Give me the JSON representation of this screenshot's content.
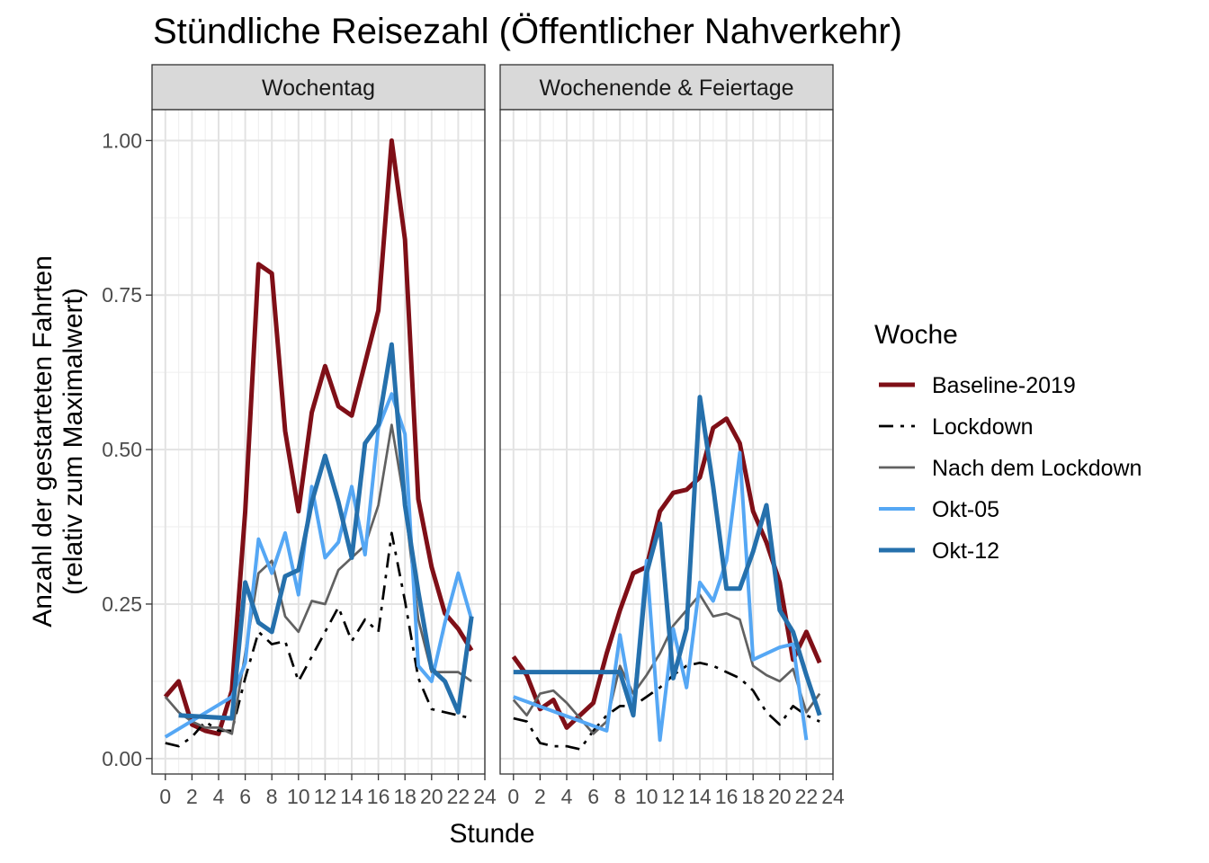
{
  "title": "Stündliche Reisezahl (Öffentlicher Nahverkehr)",
  "chart_data": {
    "type": "line",
    "title": "Stündliche Reisezahl (Öffentlicher Nahverkehr)",
    "xlabel": "Stunde",
    "ylabel_line1": "Anzahl der gestarteten Fahrten",
    "ylabel_line2": "(relativ zum Maximalwert)",
    "xlim": [
      -1,
      24
    ],
    "ylim": [
      -0.025,
      1.05
    ],
    "x_ticks": [
      0,
      2,
      4,
      6,
      8,
      10,
      12,
      14,
      16,
      18,
      20,
      22,
      24
    ],
    "x_tick_labels": [
      "0",
      "2",
      "4",
      "6",
      "8",
      "10",
      "12",
      "14",
      "16",
      "18",
      "20",
      "22",
      "24"
    ],
    "y_ticks": [
      0,
      0.25,
      0.5,
      0.75,
      1.0
    ],
    "y_tick_labels": [
      "0.00",
      "0.25",
      "0.50",
      "0.75",
      "1.00"
    ],
    "grid": true,
    "legend": {
      "title": "Woche",
      "position": "right",
      "entries": [
        "Baseline-2019",
        "Lockdown",
        "Nach dem Lockdown",
        "Okt-05",
        "Okt-12"
      ]
    },
    "style": {
      "Baseline-2019": {
        "color": "#7f0f17",
        "dash": "",
        "width": 5
      },
      "Lockdown": {
        "color": "#000000",
        "dash": "dash-dot",
        "width": 2.7
      },
      "Nach dem Lockdown": {
        "color": "#616161",
        "dash": "",
        "width": 2.7
      },
      "Okt-05": {
        "color": "#55a7f4",
        "dash": "",
        "width": 4
      },
      "Okt-12": {
        "color": "#2570ac",
        "dash": "",
        "width": 5
      }
    },
    "panels": [
      {
        "label": "Wochentag",
        "series": [
          {
            "name": "Baseline-2019",
            "x": [
              0,
              1,
              2,
              3,
              4,
              5,
              6,
              7,
              8,
              9,
              10,
              11,
              12,
              13,
              14,
              15,
              16,
              17,
              18,
              19,
              20,
              21,
              22,
              23
            ],
            "y": [
              0.1,
              0.125,
              0.055,
              0.045,
              0.04,
              0.11,
              0.4,
              0.8,
              0.785,
              0.53,
              0.4,
              0.56,
              0.635,
              0.57,
              0.555,
              0.64,
              0.725,
              1.0,
              0.84,
              0.42,
              0.31,
              0.235,
              0.21,
              0.175
            ]
          },
          {
            "name": "Lockdown",
            "x": [
              0,
              1,
              2,
              3,
              4,
              5,
              6,
              7,
              8,
              9,
              10,
              11,
              12,
              13,
              14,
              15,
              16,
              17,
              18,
              19,
              20,
              21,
              22,
              23
            ],
            "y": [
              0.025,
              0.02,
              0.035,
              0.06,
              0.045,
              0.045,
              0.13,
              0.205,
              0.185,
              0.19,
              0.125,
              0.165,
              0.205,
              0.245,
              0.19,
              0.225,
              0.205,
              0.365,
              0.255,
              0.13,
              0.08,
              0.075,
              0.07,
              0.065
            ]
          },
          {
            "name": "Nach dem Lockdown",
            "x": [
              0,
              1,
              2,
              3,
              4,
              5,
              6,
              7,
              8,
              9,
              10,
              11,
              12,
              13,
              14,
              15,
              16,
              17,
              18,
              19,
              20,
              21,
              22,
              23
            ],
            "y": [
              0.1,
              0.075,
              0.06,
              0.05,
              0.05,
              0.04,
              0.17,
              0.3,
              0.32,
              0.23,
              0.205,
              0.255,
              0.25,
              0.305,
              0.325,
              0.345,
              0.41,
              0.54,
              0.41,
              0.225,
              0.14,
              0.14,
              0.14,
              0.125
            ]
          },
          {
            "name": "Okt-05",
            "x": [
              0,
              5,
              6,
              7,
              8,
              9,
              10,
              11,
              12,
              13,
              14,
              15,
              16,
              17,
              18,
              19,
              20,
              21,
              22,
              23
            ],
            "y": [
              0.035,
              0.1,
              0.155,
              0.355,
              0.3,
              0.365,
              0.265,
              0.44,
              0.325,
              0.35,
              0.44,
              0.33,
              0.535,
              0.59,
              0.525,
              0.15,
              0.125,
              0.22,
              0.3,
              0.225
            ]
          },
          {
            "name": "Okt-12",
            "x": [
              1,
              5,
              6,
              7,
              8,
              9,
              10,
              11,
              12,
              13,
              14,
              15,
              16,
              17,
              18,
              19,
              20,
              21,
              22,
              23
            ],
            "y": [
              0.07,
              0.065,
              0.285,
              0.22,
              0.205,
              0.295,
              0.305,
              0.415,
              0.49,
              0.415,
              0.325,
              0.51,
              0.54,
              0.67,
              0.41,
              0.27,
              0.145,
              0.125,
              0.075,
              0.23
            ]
          }
        ]
      },
      {
        "label": "Wochenende & Feiertage",
        "series": [
          {
            "name": "Baseline-2019",
            "x": [
              0,
              1,
              2,
              3,
              4,
              5,
              6,
              7,
              8,
              9,
              10,
              11,
              12,
              13,
              14,
              15,
              16,
              17,
              18,
              19,
              20,
              21,
              22,
              23
            ],
            "y": [
              0.165,
              0.135,
              0.08,
              0.095,
              0.05,
              0.07,
              0.09,
              0.17,
              0.24,
              0.3,
              0.31,
              0.4,
              0.43,
              0.435,
              0.455,
              0.535,
              0.55,
              0.51,
              0.4,
              0.35,
              0.285,
              0.16,
              0.205,
              0.155
            ]
          },
          {
            "name": "Lockdown",
            "x": [
              0,
              1,
              2,
              3,
              4,
              5,
              6,
              7,
              8,
              9,
              10,
              11,
              12,
              13,
              14,
              15,
              16,
              17,
              18,
              19,
              20,
              21,
              22,
              23
            ],
            "y": [
              0.065,
              0.06,
              0.025,
              0.02,
              0.02,
              0.015,
              0.045,
              0.07,
              0.085,
              0.085,
              0.1,
              0.115,
              0.135,
              0.15,
              0.155,
              0.15,
              0.14,
              0.13,
              0.11,
              0.075,
              0.055,
              0.085,
              0.07,
              0.06
            ]
          },
          {
            "name": "Nach dem Lockdown",
            "x": [
              0,
              1,
              2,
              3,
              4,
              5,
              6,
              7,
              8,
              9,
              10,
              11,
              12,
              13,
              14,
              15,
              16,
              17,
              18,
              19,
              20,
              21,
              22,
              23
            ],
            "y": [
              0.095,
              0.07,
              0.105,
              0.11,
              0.09,
              0.065,
              0.04,
              0.06,
              0.15,
              0.105,
              0.135,
              0.17,
              0.215,
              0.24,
              0.265,
              0.23,
              0.235,
              0.225,
              0.15,
              0.135,
              0.125,
              0.145,
              0.075,
              0.105
            ]
          },
          {
            "name": "Okt-05",
            "x": [
              0,
              7,
              8,
              9,
              10,
              11,
              12,
              13,
              14,
              15,
              16,
              17,
              18,
              19,
              20,
              21,
              22
            ],
            "y": [
              0.1,
              0.045,
              0.2,
              0.075,
              0.32,
              0.03,
              0.21,
              0.115,
              0.285,
              0.255,
              0.32,
              0.495,
              0.16,
              0.17,
              0.18,
              0.185,
              0.03
            ]
          },
          {
            "name": "Okt-12",
            "x": [
              0,
              8,
              9,
              10,
              11,
              12,
              13,
              14,
              15,
              16,
              17,
              18,
              19,
              20,
              21,
              22,
              23
            ],
            "y": [
              0.14,
              0.14,
              0.07,
              0.3,
              0.38,
              0.13,
              0.21,
              0.585,
              0.44,
              0.275,
              0.275,
              0.335,
              0.41,
              0.24,
              0.205,
              0.135,
              0.07
            ]
          }
        ]
      }
    ]
  }
}
